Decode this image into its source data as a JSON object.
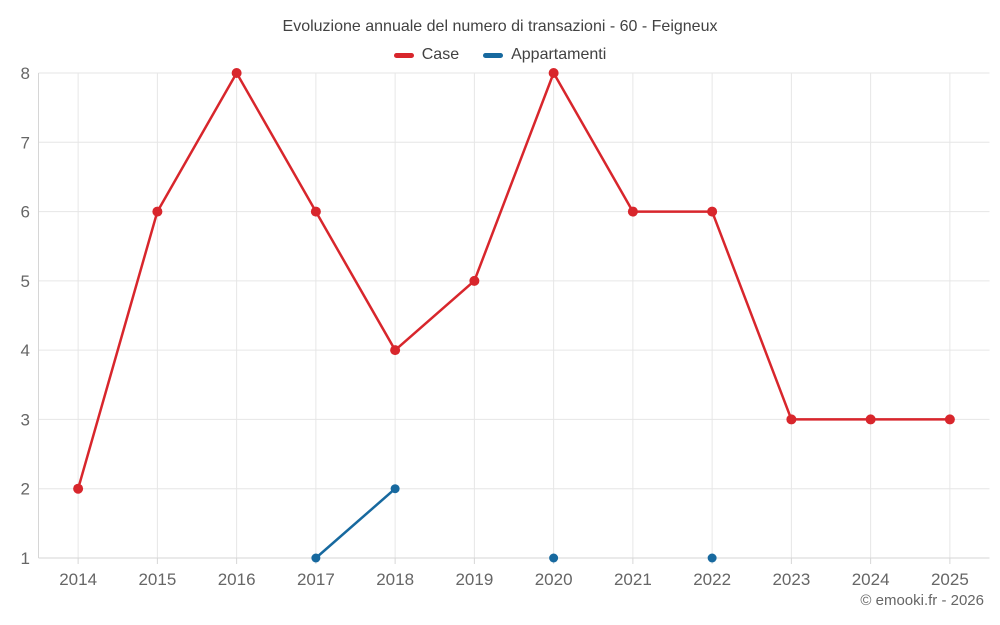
{
  "chart": {
    "title": "Evoluzione annuale del numero di transazioni - 60 - Feigneux",
    "credit": "© emooki.fr - 2026"
  },
  "chart_data": {
    "type": "line",
    "title": "Evoluzione annuale del numero di transazioni - 60 - Feigneux",
    "categories": [
      "2014",
      "2015",
      "2016",
      "2017",
      "2018",
      "2019",
      "2020",
      "2021",
      "2022",
      "2023",
      "2024",
      "2025"
    ],
    "series": [
      {
        "name": "Case",
        "color": "#d8262c",
        "values": [
          2,
          6,
          8,
          6,
          4,
          5,
          8,
          6,
          6,
          3,
          3,
          3
        ]
      },
      {
        "name": "Appartamenti",
        "color": "#17699f",
        "values": [
          null,
          null,
          null,
          1,
          2,
          null,
          1,
          null,
          1,
          null,
          null,
          null
        ]
      }
    ],
    "xlabel": "",
    "ylabel": "",
    "ylim": [
      1,
      8
    ],
    "yticks": [
      1,
      2,
      3,
      4,
      5,
      6,
      7,
      8
    ],
    "grid": true,
    "legend_position": "top",
    "colors": {
      "gridline": "#e6e6e6",
      "axis_line": "#d6d6d6",
      "axis_label": "#666666",
      "title_text": "#424242"
    }
  }
}
